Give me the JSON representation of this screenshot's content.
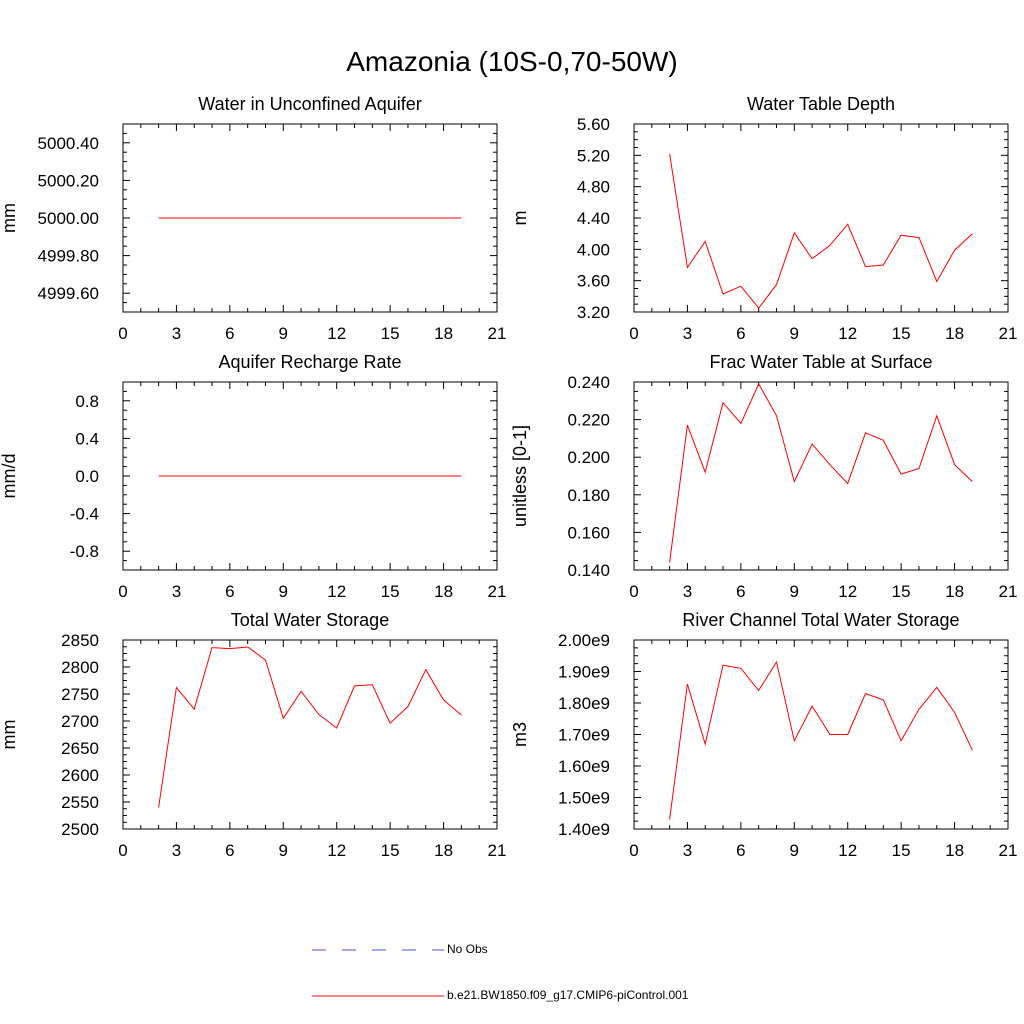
{
  "figure": {
    "title": "Amazonia (10S-0,70-50W)",
    "legend": [
      {
        "label": "No Obs",
        "color": "#4f4fcf",
        "style": "dashed"
      },
      {
        "label": "b.e21.BW1850.f09_g17.CMIP6-piControl.001",
        "color": "#ff0000",
        "style": "solid"
      }
    ]
  },
  "chart_data": [
    {
      "type": "line",
      "title": "Water in Unconfined Aquifer",
      "xlabel": "",
      "ylabel": "mm",
      "xlim": [
        0,
        21
      ],
      "xticks": [
        0,
        3,
        6,
        9,
        12,
        15,
        18,
        21
      ],
      "ylim": [
        4999.5,
        5000.5
      ],
      "yticks": [
        4999.6,
        4999.8,
        5000.0,
        5000.2,
        5000.4
      ],
      "ytick_labels": [
        "4999.60",
        "4999.80",
        "5000.00",
        "5000.20",
        "5000.40"
      ],
      "series": [
        {
          "color": "#ff0000",
          "x": [
            2,
            3,
            4,
            5,
            6,
            7,
            8,
            9,
            10,
            11,
            12,
            13,
            14,
            15,
            16,
            17,
            18,
            19
          ],
          "y": [
            5000,
            5000,
            5000,
            5000,
            5000,
            5000,
            5000,
            5000,
            5000,
            5000,
            5000,
            5000,
            5000,
            5000,
            5000,
            5000,
            5000,
            5000
          ]
        }
      ]
    },
    {
      "type": "line",
      "title": "Water Table Depth",
      "xlabel": "",
      "ylabel": "m",
      "xlim": [
        0,
        21
      ],
      "xticks": [
        0,
        3,
        6,
        9,
        12,
        15,
        18,
        21
      ],
      "ylim": [
        3.2,
        5.6
      ],
      "yticks": [
        3.2,
        3.6,
        4.0,
        4.4,
        4.8,
        5.2,
        5.6
      ],
      "ytick_labels": [
        "3.20",
        "3.60",
        "4.00",
        "4.40",
        "4.80",
        "5.20",
        "5.60"
      ],
      "series": [
        {
          "color": "#ff0000",
          "x": [
            2,
            3,
            4,
            5,
            6,
            7,
            8,
            9,
            10,
            11,
            12,
            13,
            14,
            15,
            16,
            17,
            18,
            19
          ],
          "y": [
            5.22,
            3.77,
            4.1,
            3.43,
            3.53,
            3.25,
            3.55,
            4.21,
            3.88,
            4.05,
            4.32,
            3.78,
            3.8,
            4.18,
            4.15,
            3.59,
            3.99,
            4.2
          ]
        }
      ]
    },
    {
      "type": "line",
      "title": "Aquifer Recharge Rate",
      "xlabel": "",
      "ylabel": "mm/d",
      "xlim": [
        0,
        21
      ],
      "xticks": [
        0,
        3,
        6,
        9,
        12,
        15,
        18,
        21
      ],
      "ylim": [
        -1.0,
        1.0
      ],
      "yticks": [
        -0.8,
        -0.4,
        0.0,
        0.4,
        0.8
      ],
      "ytick_labels": [
        "-0.8",
        "-0.4",
        "0.0",
        "0.4",
        "0.8"
      ],
      "series": [
        {
          "color": "#ff0000",
          "x": [
            2,
            3,
            4,
            5,
            6,
            7,
            8,
            9,
            10,
            11,
            12,
            13,
            14,
            15,
            16,
            17,
            18,
            19
          ],
          "y": [
            0,
            0,
            0,
            0,
            0,
            0,
            0,
            0,
            0,
            0,
            0,
            0,
            0,
            0,
            0,
            0,
            0,
            0
          ]
        }
      ]
    },
    {
      "type": "line",
      "title": "Frac Water Table at Surface",
      "xlabel": "",
      "ylabel": "unitless [0-1]",
      "xlim": [
        0,
        21
      ],
      "xticks": [
        0,
        3,
        6,
        9,
        12,
        15,
        18,
        21
      ],
      "ylim": [
        0.14,
        0.24
      ],
      "yticks": [
        0.14,
        0.16,
        0.18,
        0.2,
        0.22,
        0.24
      ],
      "ytick_labels": [
        "0.140",
        "0.160",
        "0.180",
        "0.200",
        "0.220",
        "0.240"
      ],
      "series": [
        {
          "color": "#ff0000",
          "x": [
            2,
            3,
            4,
            5,
            6,
            7,
            8,
            9,
            10,
            11,
            12,
            13,
            14,
            15,
            16,
            17,
            18,
            19
          ],
          "y": [
            0.144,
            0.217,
            0.192,
            0.229,
            0.218,
            0.239,
            0.222,
            0.187,
            0.207,
            0.196,
            0.186,
            0.213,
            0.209,
            0.191,
            0.194,
            0.222,
            0.196,
            0.187
          ]
        }
      ]
    },
    {
      "type": "line",
      "title": "Total Water Storage",
      "xlabel": "",
      "ylabel": "mm",
      "xlim": [
        0,
        21
      ],
      "xticks": [
        0,
        3,
        6,
        9,
        12,
        15,
        18,
        21
      ],
      "ylim": [
        2500,
        2850
      ],
      "yticks": [
        2500,
        2550,
        2600,
        2650,
        2700,
        2750,
        2800,
        2850
      ],
      "ytick_labels": [
        "2500",
        "2550",
        "2600",
        "2650",
        "2700",
        "2750",
        "2800",
        "2850"
      ],
      "series": [
        {
          "color": "#ff0000",
          "x": [
            2,
            3,
            4,
            5,
            6,
            7,
            8,
            9,
            10,
            11,
            12,
            13,
            14,
            15,
            16,
            17,
            18,
            19
          ],
          "y": [
            2540,
            2762,
            2722,
            2836,
            2834,
            2837,
            2813,
            2705,
            2755,
            2712,
            2687,
            2765,
            2767,
            2696,
            2727,
            2795,
            2739,
            2711
          ]
        }
      ]
    },
    {
      "type": "line",
      "title": "River Channel Total Water Storage",
      "xlabel": "",
      "ylabel": "m3",
      "xlim": [
        0,
        21
      ],
      "xticks": [
        0,
        3,
        6,
        9,
        12,
        15,
        18,
        21
      ],
      "ylim": [
        1400000000.0,
        2000000000.0
      ],
      "yticks": [
        1400000000.0,
        1500000000.0,
        1600000000.0,
        1700000000.0,
        1800000000.0,
        1900000000.0,
        2000000000.0
      ],
      "ytick_labels": [
        "1.40e9",
        "1.50e9",
        "1.60e9",
        "1.70e9",
        "1.80e9",
        "1.90e9",
        "2.00e9"
      ],
      "series": [
        {
          "color": "#ff0000",
          "x": [
            2,
            3,
            4,
            5,
            6,
            7,
            8,
            9,
            10,
            11,
            12,
            13,
            14,
            15,
            16,
            17,
            18,
            19
          ],
          "y": [
            1430000000.0,
            1860000000.0,
            1670000000.0,
            1920000000.0,
            1910000000.0,
            1840000000.0,
            1930000000.0,
            1680000000.0,
            1790000000.0,
            1700000000.0,
            1700000000.0,
            1830000000.0,
            1810000000.0,
            1680000000.0,
            1780000000.0,
            1850000000.0,
            1770000000.0,
            1650000000.0
          ]
        }
      ]
    }
  ]
}
